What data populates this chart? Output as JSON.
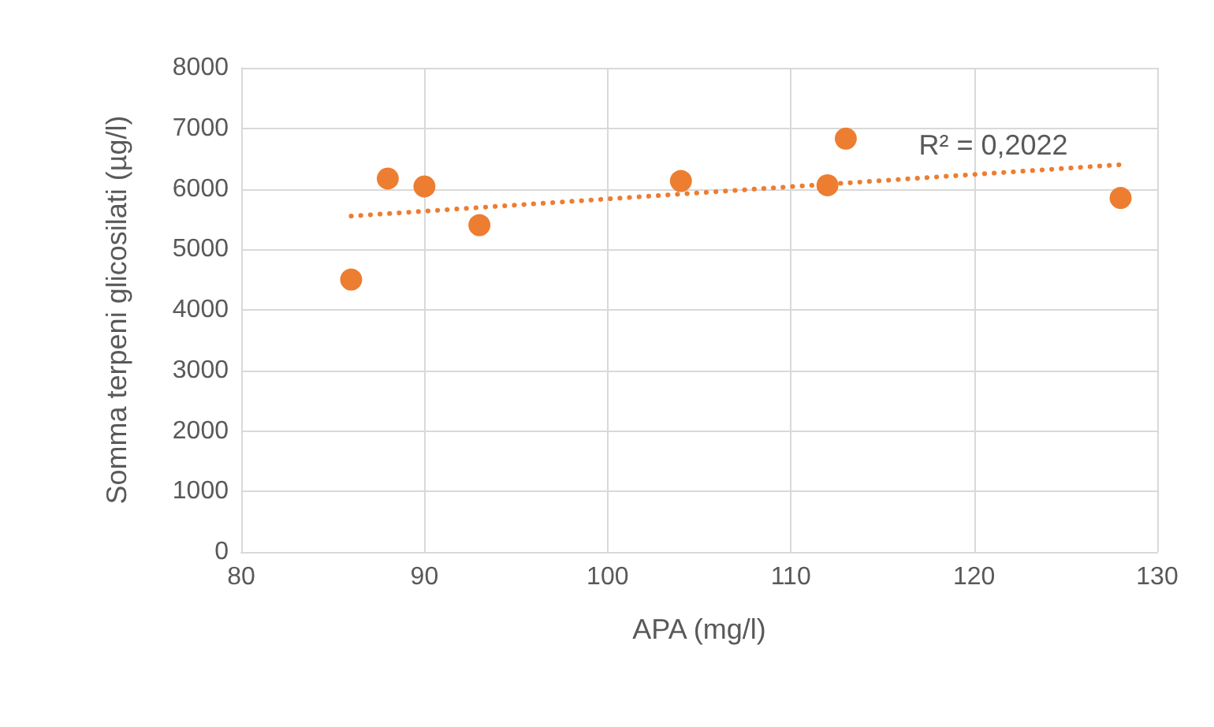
{
  "chart_data": {
    "type": "scatter",
    "xlabel": "APA (mg/l)",
    "ylabel": "Somma terpeni glicosilati (µg/l)",
    "x": [
      86,
      88,
      90,
      93,
      104,
      112,
      113,
      128
    ],
    "series": [
      {
        "color": "#ed7d31",
        "values": [
          4500,
          6170,
          6040,
          5400,
          6130,
          6060,
          6830,
          5850
        ]
      },
      {
        "type": "line",
        "color": "#ed7d31",
        "line_style": "dotted",
        "marker": "none",
        "x": [
          86,
          128
        ],
        "values": [
          5550,
          6400
        ]
      }
    ],
    "xlim": [
      80,
      130
    ],
    "xticks": [
      80,
      90,
      100,
      110,
      120,
      130
    ],
    "ylim": [
      0,
      8000
    ],
    "yticks": [
      0,
      1000,
      2000,
      3000,
      4000,
      5000,
      6000,
      7000,
      8000
    ],
    "grid": true,
    "marker": "circle",
    "annotations": [
      "R² = 0,2022"
    ]
  }
}
